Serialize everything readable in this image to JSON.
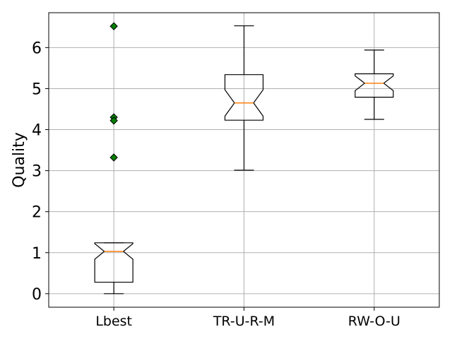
{
  "chart_data": {
    "type": "boxplot",
    "notched": true,
    "title": "",
    "xlabel": "",
    "ylabel": "Quality",
    "ylim": [
      -0.33,
      6.85
    ],
    "yticks": [
      0,
      1,
      2,
      3,
      4,
      5,
      6
    ],
    "grid": true,
    "categories": [
      "Lbest",
      "TR-U-R-M",
      "RW-O-U"
    ],
    "boxes": [
      {
        "category": "Lbest",
        "whisker_low": 0.0,
        "q1": 0.28,
        "median": 1.03,
        "q3": 1.24,
        "whisker_high": 1.24,
        "notch_low": 0.84,
        "notch_high": 1.22,
        "outliers": [
          6.52,
          4.3,
          4.22,
          3.32
        ]
      },
      {
        "category": "TR-U-R-M",
        "whisker_low": 3.01,
        "q1": 4.23,
        "median": 4.65,
        "q3": 5.34,
        "whisker_high": 6.53,
        "notch_low": 4.33,
        "notch_high": 4.97,
        "outliers": []
      },
      {
        "category": "RW-O-U",
        "whisker_low": 4.25,
        "q1": 4.79,
        "median": 5.13,
        "q3": 5.36,
        "whisker_high": 5.94,
        "notch_low": 4.95,
        "notch_high": 5.31,
        "outliers": []
      }
    ],
    "colors": {
      "box": "#000000",
      "median": "#ff7f0e",
      "outlier": "#008000",
      "grid": "#b0b0b0"
    }
  }
}
